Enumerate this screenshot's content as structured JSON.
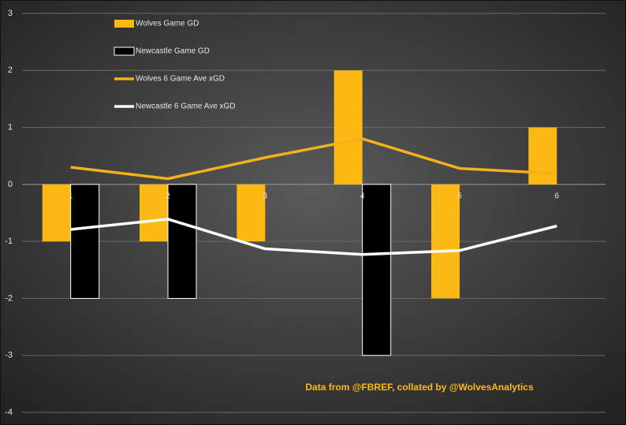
{
  "chart_data": {
    "type": "bar_line",
    "categories": [
      "1",
      "2",
      "3",
      "4",
      "5",
      "6"
    ],
    "series": [
      {
        "name": "Wolves Game GD",
        "kind": "bar",
        "color": "#fdb913",
        "values": [
          -1,
          -1,
          -1,
          2,
          -2,
          1
        ]
      },
      {
        "name": "Newcastle Game GD",
        "kind": "bar",
        "color": "#000000",
        "values": [
          -2,
          -2,
          0,
          -3,
          0,
          0
        ]
      },
      {
        "name": "Wolves 6 Game Ave xGD",
        "kind": "line",
        "color": "#f5b01a",
        "values": [
          0.3,
          0.1,
          0.47,
          0.8,
          0.28,
          0.19
        ]
      },
      {
        "name": "Newcastle 6 Game Ave xGD",
        "kind": "line",
        "color": "#ffffff",
        "values": [
          -0.79,
          -0.61,
          -1.13,
          -1.23,
          -1.16,
          -0.73
        ]
      }
    ],
    "ylim": [
      -4,
      3
    ],
    "yticks": [
      -4,
      -3,
      -2,
      -1,
      0,
      1,
      2,
      3
    ],
    "grid": true,
    "annotation": "Data from @FBREF, collated by @WolvesAnalytics"
  }
}
